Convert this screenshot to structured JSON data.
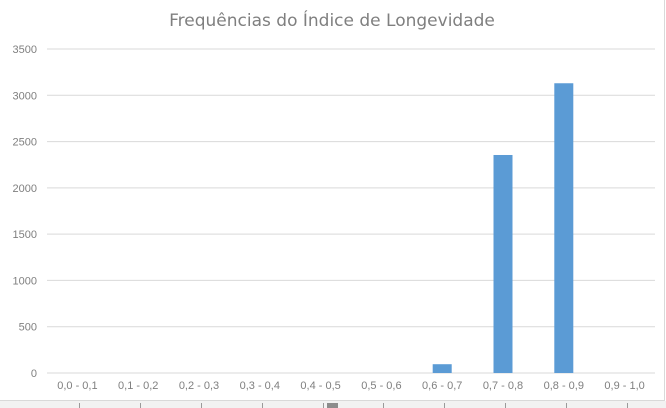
{
  "chart_data": {
    "type": "bar",
    "title": "Frequências do Índice de Longevidade",
    "xlabel": "",
    "ylabel": "",
    "categories": [
      "0,0 - 0,1",
      "0,1 - 0,2",
      "0,2 - 0,3",
      "0,3 - 0,4",
      "0,4 - 0,5",
      "0,5 - 0,6",
      "0,6 - 0,7",
      "0,7 - 0,8",
      "0,8 - 0,9",
      "0,9 - 1,0"
    ],
    "values": [
      0,
      0,
      0,
      0,
      0,
      0,
      95,
      2355,
      3130,
      0
    ],
    "ylim": [
      0,
      3500
    ],
    "yticks": [
      0,
      500,
      1000,
      1500,
      2000,
      2500,
      3000,
      3500
    ],
    "grid": true,
    "legend": "none",
    "colors": {
      "bar": "#5b9bd5",
      "grid": "#d9d9d9",
      "text": "#7f7f7f"
    }
  }
}
